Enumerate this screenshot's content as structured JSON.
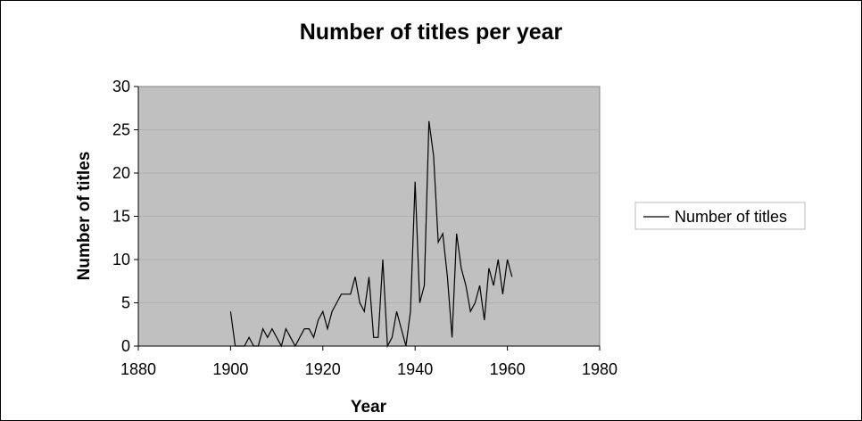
{
  "chart_data": {
    "type": "line",
    "title": "Number of titles per year",
    "xlabel": "Year",
    "ylabel": "Number of titles",
    "xlim": [
      1880,
      1980
    ],
    "ylim": [
      0,
      30
    ],
    "x_ticks": [
      "1880",
      "1900",
      "1920",
      "1940",
      "1960",
      "1980"
    ],
    "y_ticks": [
      "0",
      "5",
      "10",
      "15",
      "20",
      "25",
      "30"
    ],
    "grid": true,
    "legend_position": "right",
    "plot_background": "#c0c0c0",
    "line_color": "#000000",
    "series": [
      {
        "name": "Number of titles",
        "x": [
          1900,
          1901,
          1902,
          1903,
          1904,
          1905,
          1906,
          1907,
          1908,
          1909,
          1910,
          1911,
          1912,
          1913,
          1914,
          1915,
          1916,
          1917,
          1918,
          1919,
          1920,
          1921,
          1922,
          1923,
          1924,
          1925,
          1926,
          1927,
          1928,
          1929,
          1930,
          1931,
          1932,
          1933,
          1934,
          1935,
          1936,
          1937,
          1938,
          1939,
          1940,
          1941,
          1942,
          1943,
          1944,
          1945,
          1946,
          1947,
          1948,
          1949,
          1950,
          1951,
          1952,
          1953,
          1954,
          1955,
          1956,
          1957,
          1958,
          1959,
          1960,
          1961
        ],
        "y": [
          4,
          0,
          0,
          0,
          1,
          0,
          0,
          2,
          1,
          2,
          1,
          0,
          2,
          1,
          0,
          1,
          2,
          2,
          1,
          3,
          4,
          2,
          4,
          5,
          6,
          6,
          6,
          8,
          5,
          4,
          8,
          1,
          1,
          10,
          0,
          1,
          4,
          2,
          0,
          4,
          19,
          5,
          7,
          26,
          22,
          12,
          13,
          8,
          1,
          13,
          9,
          7,
          4,
          5,
          7,
          3,
          9,
          7,
          10,
          6,
          10,
          8
        ]
      }
    ]
  }
}
